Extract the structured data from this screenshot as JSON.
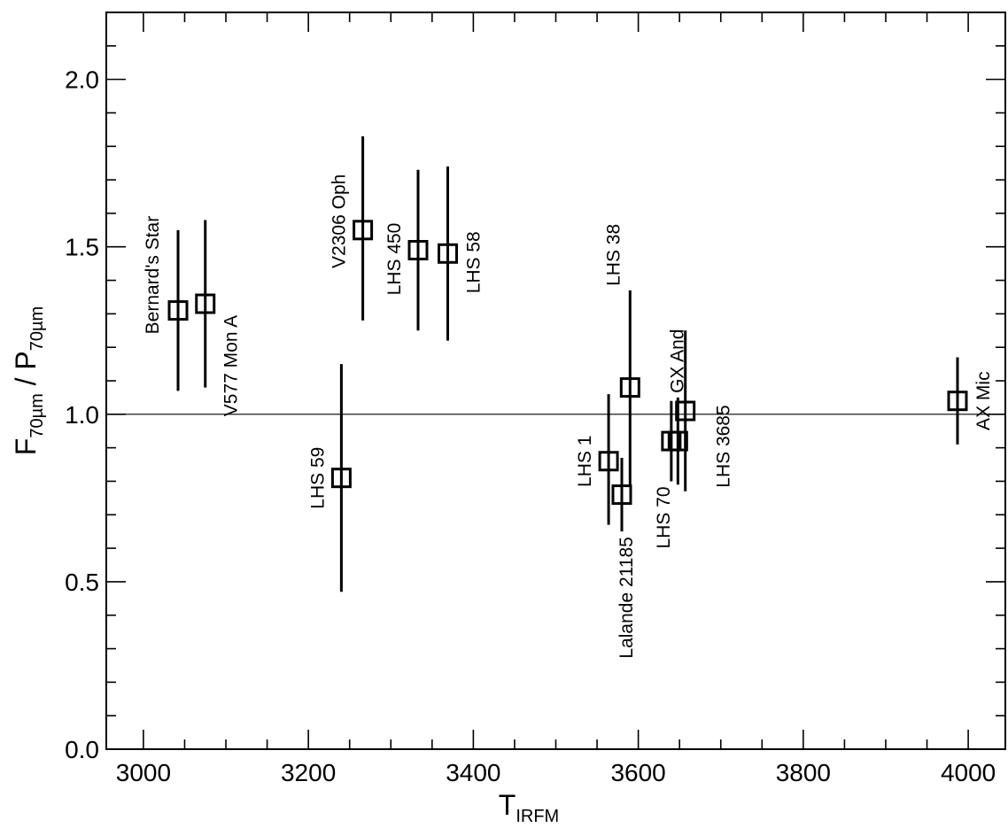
{
  "chart_data": {
    "type": "scatter",
    "title": "",
    "xlabel_main": "T",
    "xlabel_sub": "IRFM",
    "ylabel_parts": {
      "f": "F",
      "f_sub": "70µm",
      "slash": " / ",
      "p": "P",
      "p_sub": "70µm"
    },
    "xlim": [
      2955,
      4045
    ],
    "ylim": [
      0,
      2.2
    ],
    "x_ticks": [
      3000,
      3200,
      3400,
      3600,
      3800,
      4000
    ],
    "x_tick_labels": [
      "3000",
      "3200",
      "3400",
      "3600",
      "3800",
      "4000"
    ],
    "y_ticks": [
      0,
      0.5,
      1.0,
      1.5,
      2.0
    ],
    "y_tick_labels": [
      "0.0",
      "0.5",
      "1.0",
      "1.5",
      "2.0"
    ],
    "reference_line_y": 1.0,
    "grid": false,
    "marker": "open-square",
    "points": [
      {
        "label": "Bernard's Star",
        "x": 3042,
        "y": 1.31,
        "ylo": 1.07,
        "yhi": 1.55
      },
      {
        "label": "V577 Mon A",
        "x": 3075,
        "y": 1.33,
        "ylo": 1.08,
        "yhi": 1.58
      },
      {
        "label": "LHS 59",
        "x": 3240,
        "y": 0.81,
        "ylo": 0.47,
        "yhi": 1.15
      },
      {
        "label": "V2306 Oph",
        "x": 3266,
        "y": 1.55,
        "ylo": 1.28,
        "yhi": 1.83
      },
      {
        "label": "LHS 450",
        "x": 3333,
        "y": 1.49,
        "ylo": 1.25,
        "yhi": 1.73
      },
      {
        "label": "LHS 58",
        "x": 3369,
        "y": 1.48,
        "ylo": 1.22,
        "yhi": 1.74
      },
      {
        "label": "LHS 1",
        "x": 3564,
        "y": 0.86,
        "ylo": 0.67,
        "yhi": 1.06
      },
      {
        "label": "Lalande 21185",
        "x": 3580,
        "y": 0.76,
        "ylo": 0.65,
        "yhi": 0.87
      },
      {
        "label": "LHS 38",
        "x": 3590,
        "y": 1.08,
        "ylo": 0.79,
        "yhi": 1.37
      },
      {
        "label": "LHS 70",
        "x": 3640,
        "y": 0.92,
        "ylo": 0.8,
        "yhi": 1.04
      },
      {
        "label": "GX And",
        "x": 3648,
        "y": 0.92,
        "ylo": 0.79,
        "yhi": 1.05
      },
      {
        "label": "LHS 3685",
        "x": 3657,
        "y": 1.01,
        "ylo": 0.77,
        "yhi": 1.25
      },
      {
        "label": "AX Mic",
        "x": 3987,
        "y": 1.04,
        "ylo": 0.91,
        "yhi": 1.17
      }
    ]
  }
}
